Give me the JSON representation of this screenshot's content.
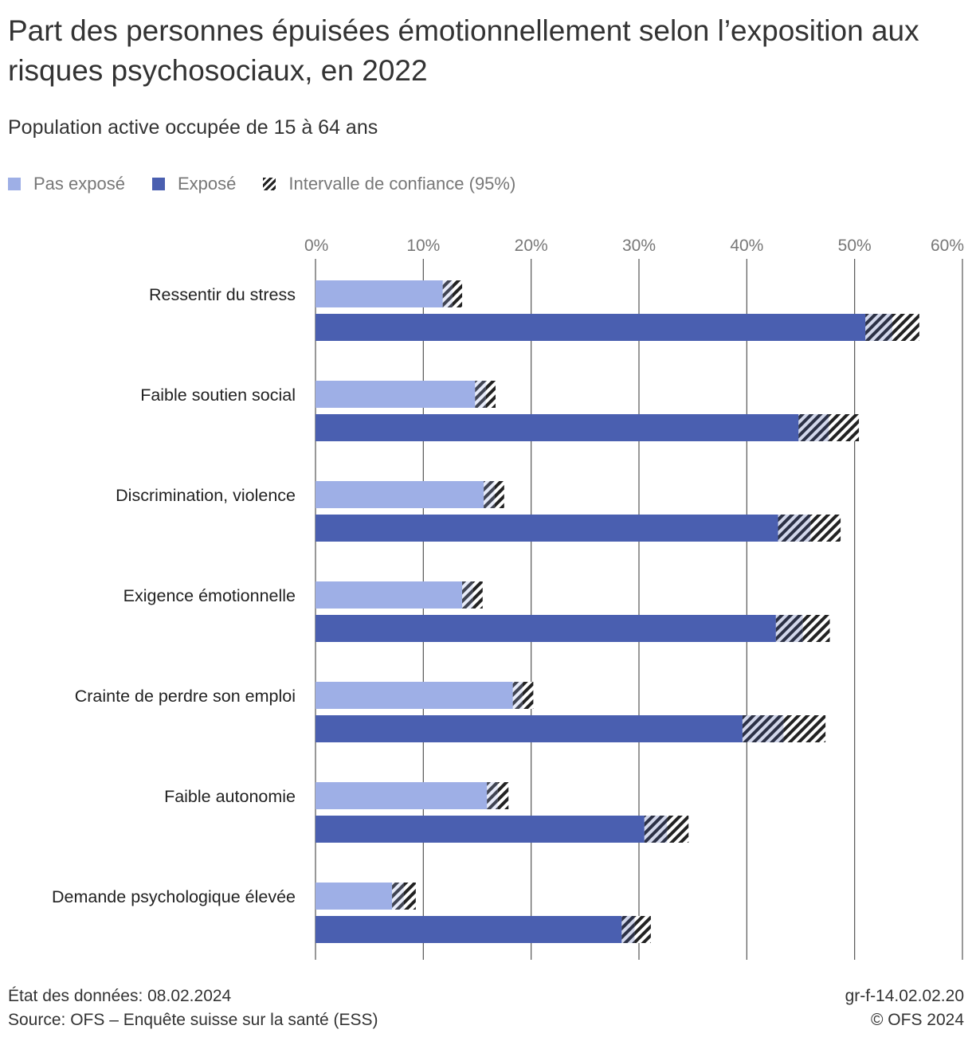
{
  "title": "Part des personnes épuisées émotionnellement selon l’exposition aux risques psychosociaux, en 2022",
  "subtitle": "Population active occupée de 15 à 64 ans",
  "legend": {
    "not_exposed": "Pas exposé",
    "exposed": "Exposé",
    "ci": "Intervalle de confiance (95%)"
  },
  "colors": {
    "not_exposed": "#9eafe6",
    "exposed": "#4a5fb0",
    "hatch": "#222222",
    "grid": "#555555"
  },
  "chart_data": {
    "type": "bar",
    "orientation": "horizontal",
    "categories": [
      "Ressentir du stress",
      "Faible soutien social",
      "Discrimination, violence",
      "Exigence émotionnelle",
      "Crainte de perdre son emploi",
      "Faible autonomie",
      "Demande psychologique élevée"
    ],
    "series": [
      {
        "name": "Pas exposé",
        "values": [
          12.7,
          15.8,
          16.6,
          14.6,
          19.2,
          16.9,
          8.2
        ],
        "ci": [
          [
            11.8,
            13.6
          ],
          [
            14.8,
            16.7
          ],
          [
            15.6,
            17.5
          ],
          [
            13.6,
            15.5
          ],
          [
            18.3,
            20.2
          ],
          [
            15.9,
            17.9
          ],
          [
            7.1,
            9.3
          ]
        ]
      },
      {
        "name": "Exposé",
        "values": [
          53.5,
          47.6,
          45.9,
          45.2,
          43.4,
          32.6,
          29.6
        ],
        "ci": [
          [
            51.0,
            56.0
          ],
          [
            44.8,
            50.4
          ],
          [
            42.9,
            48.7
          ],
          [
            42.7,
            47.7
          ],
          [
            39.6,
            47.3
          ],
          [
            30.5,
            34.6
          ],
          [
            28.4,
            31.1
          ]
        ]
      }
    ],
    "xlim": [
      0,
      60
    ],
    "xticks": [
      "0%",
      "10%",
      "20%",
      "30%",
      "40%",
      "50%",
      "60%"
    ],
    "grid": true,
    "legend_position": "top-left"
  },
  "footer": {
    "date": "État des données: 08.02.2024",
    "source": "Source: OFS – Enquête suisse sur la santé (ESS)",
    "code": "gr-f-14.02.02.20",
    "copyright": "© OFS 2024"
  }
}
